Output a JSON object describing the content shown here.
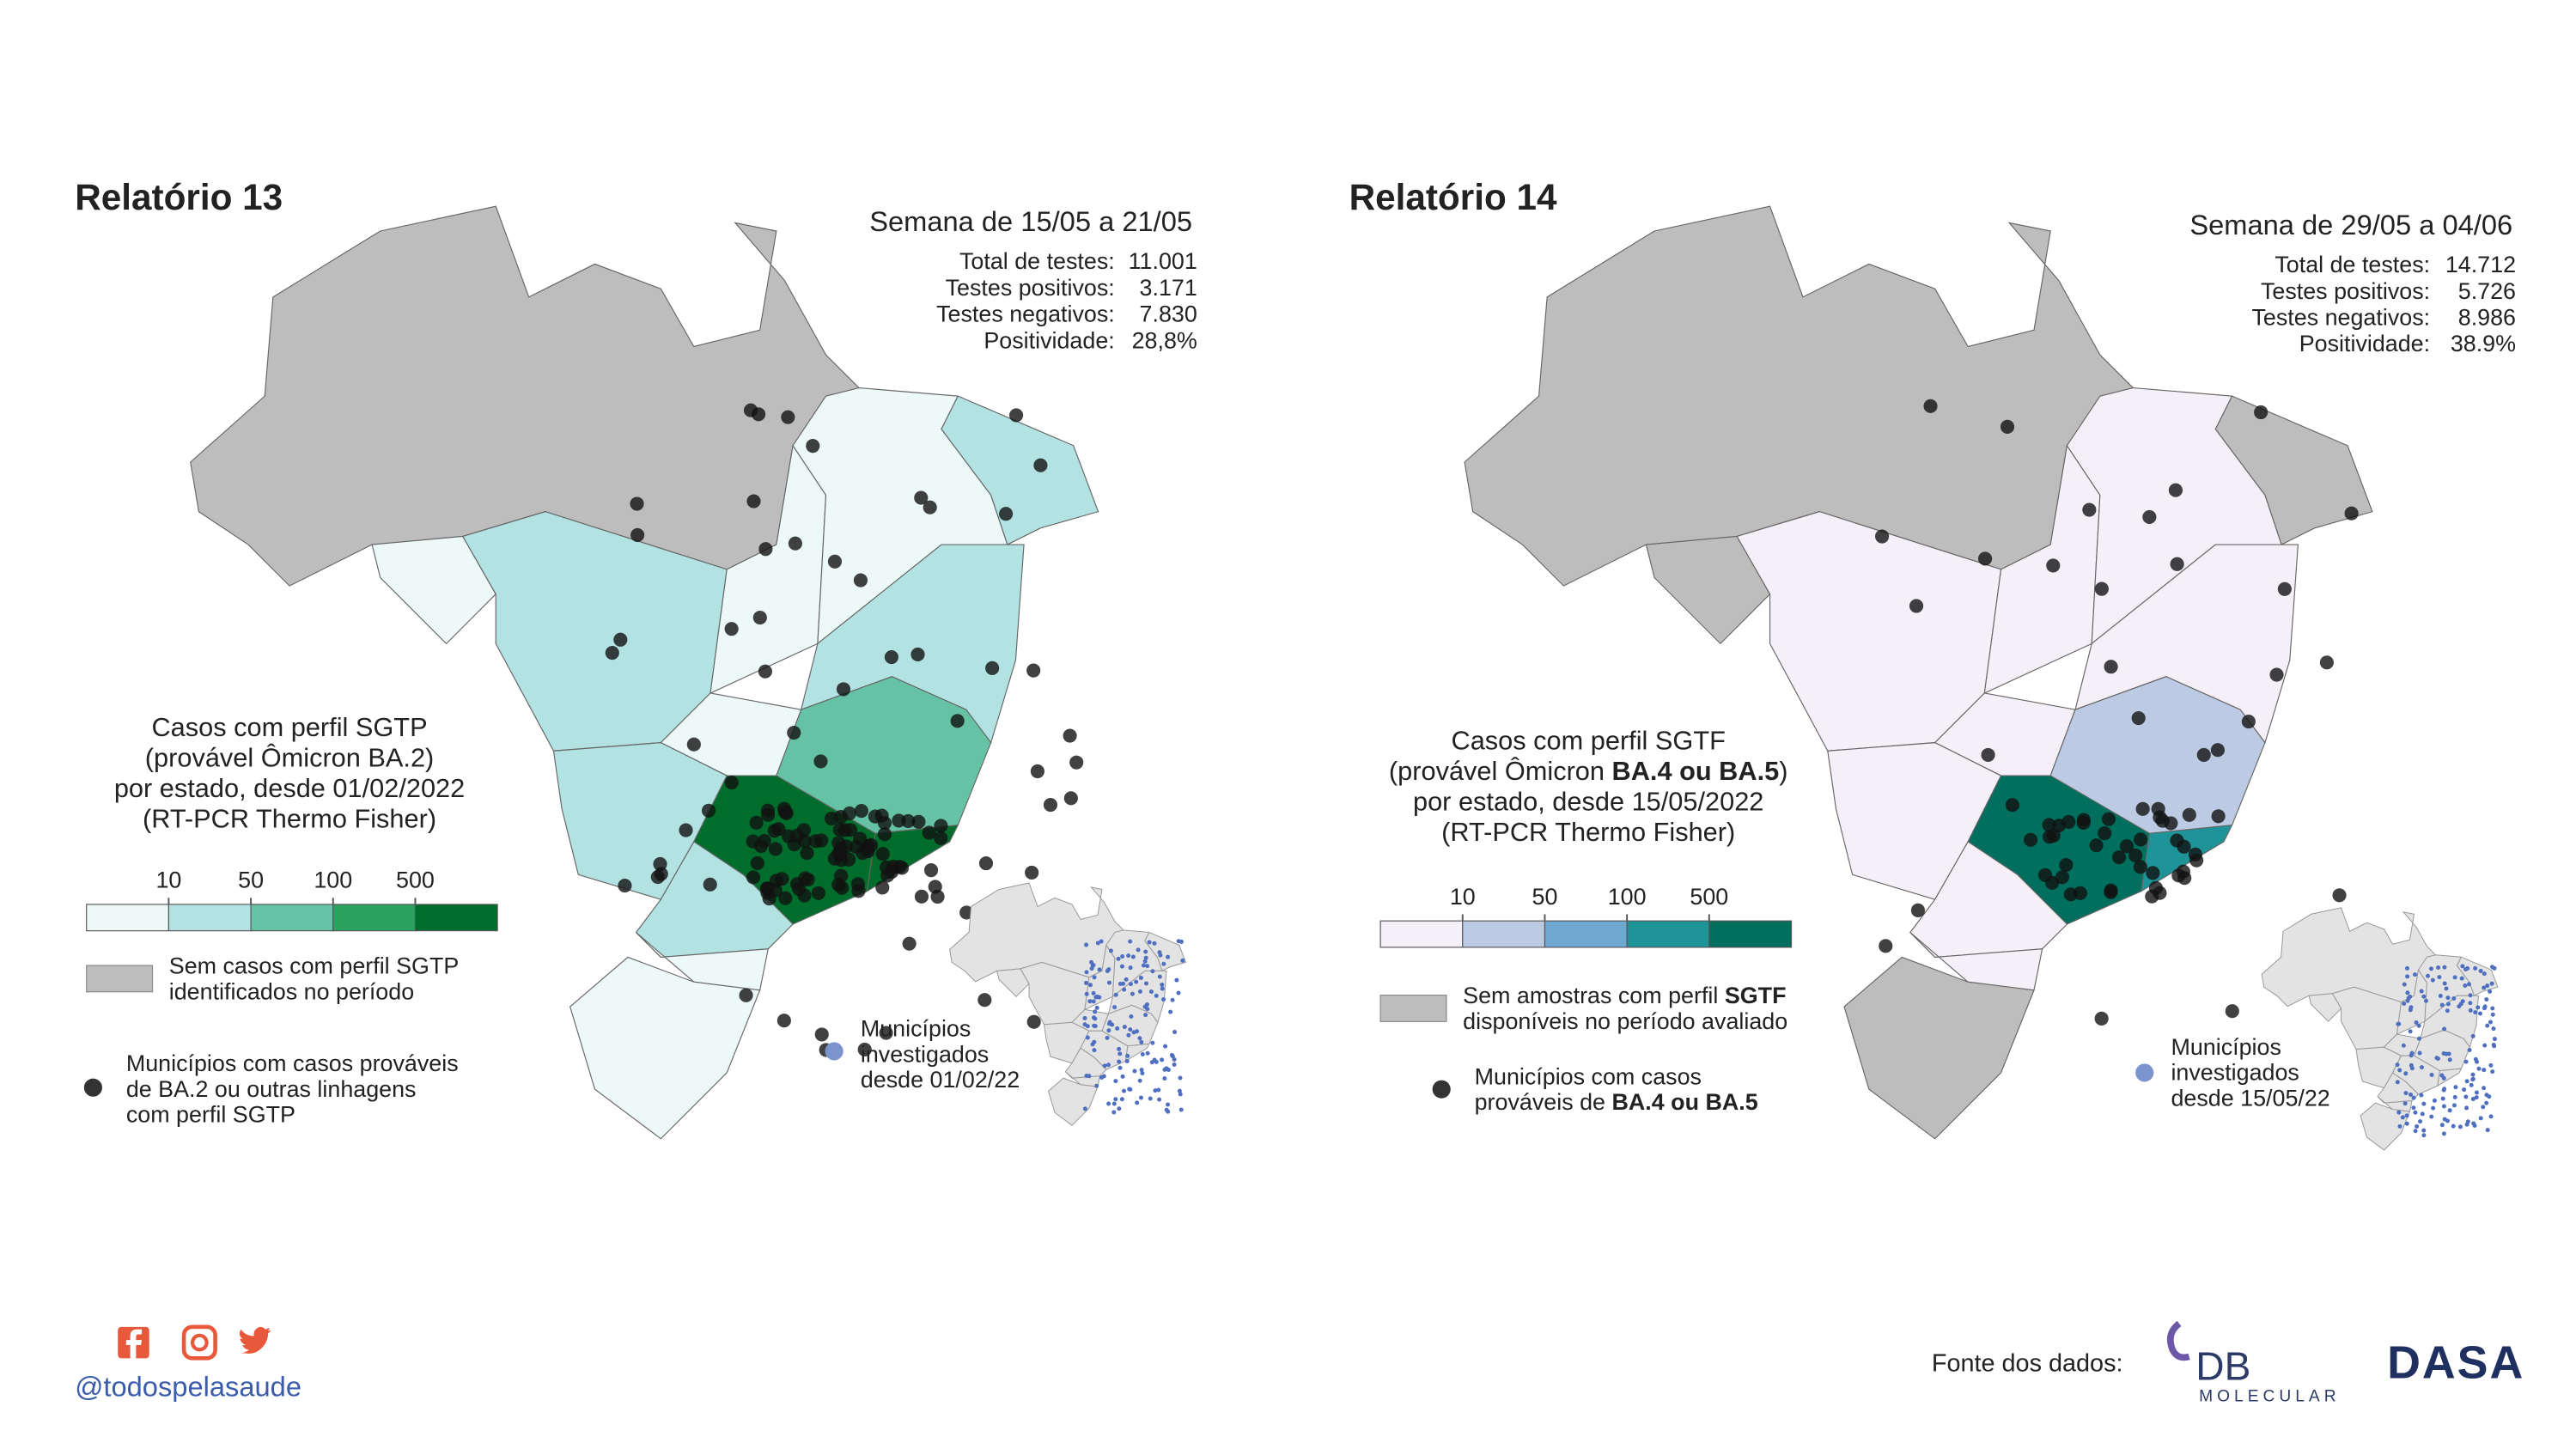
{
  "panels": [
    {
      "title": "Relatório 13",
      "week": "Semana de 15/05 a 21/05",
      "stats": [
        {
          "label": "Total de testes:",
          "value": "11.001"
        },
        {
          "label": "Testes positivos:",
          "value": "3.171"
        },
        {
          "label": "Testes negativos:",
          "value": "7.830"
        },
        {
          "label": "Positividade:",
          "value": "28,8%"
        }
      ],
      "legend": {
        "title": [
          "Casos com perfil SGTP",
          "(provável Ômicron BA.2)",
          "por estado, desde 01/02/2022",
          "(RT-PCR Thermo Fisher)"
        ],
        "ticks": [
          10,
          50,
          100,
          500
        ],
        "colors": [
          "#edf8f8",
          "#b2e2e2",
          "#66c2a4",
          "#2ca25f",
          "#006d2c"
        ]
      },
      "no_cases": [
        "Sem casos com perfil SGTP",
        "identificados no período"
      ],
      "municipalities": [
        "Municípios com casos prováveis",
        "de BA.2 ou outras linhagens",
        "com perfil SGTP"
      ],
      "investigated": [
        "Municípios",
        "investigados",
        "desde 01/02/22"
      ]
    },
    {
      "title": "Relatório 14",
      "week": "Semana de 29/05 a 04/06",
      "stats": [
        {
          "label": "Total de testes:",
          "value": "14.712"
        },
        {
          "label": "Testes positivos:",
          "value": "5.726"
        },
        {
          "label": "Testes negativos:",
          "value": "8.986"
        },
        {
          "label": "Positividade:",
          "value": "38.9%"
        }
      ],
      "legend": {
        "title": [
          "Casos com perfil SGTF",
          [
            {
              "text": "(provável Ômicron "
            },
            {
              "text": "BA.4 ou BA.5",
              "bold": true
            },
            {
              "text": ")"
            }
          ],
          "por estado, desde 15/05/2022",
          "(RT-PCR Thermo Fisher)"
        ],
        "ticks": [
          10,
          50,
          100,
          500
        ],
        "colors": [
          "#f5eff8",
          "#bccbe3",
          "#6fa8d0",
          "#1e9398",
          "#006f5d"
        ]
      },
      "no_cases": [
        [
          {
            "text": "Sem amostras com perfil "
          },
          {
            "text": "SGTF",
            "bold": true
          }
        ],
        "disponíveis no período avaliado"
      ],
      "municipalities": [
        "Municípios com casos",
        [
          {
            "text": "prováveis de "
          },
          {
            "text": "BA.4 ou BA.5",
            "bold": true
          }
        ]
      ],
      "investigated": [
        "Municípios",
        "investigados",
        "desde 15/05/22"
      ]
    }
  ],
  "footer": {
    "handle": "@todospelasaude",
    "source": "Fonte dos dados:",
    "logo_db": "DB",
    "logo_molecular": "MOLECULAR",
    "logo_dasa": "DASA"
  }
}
